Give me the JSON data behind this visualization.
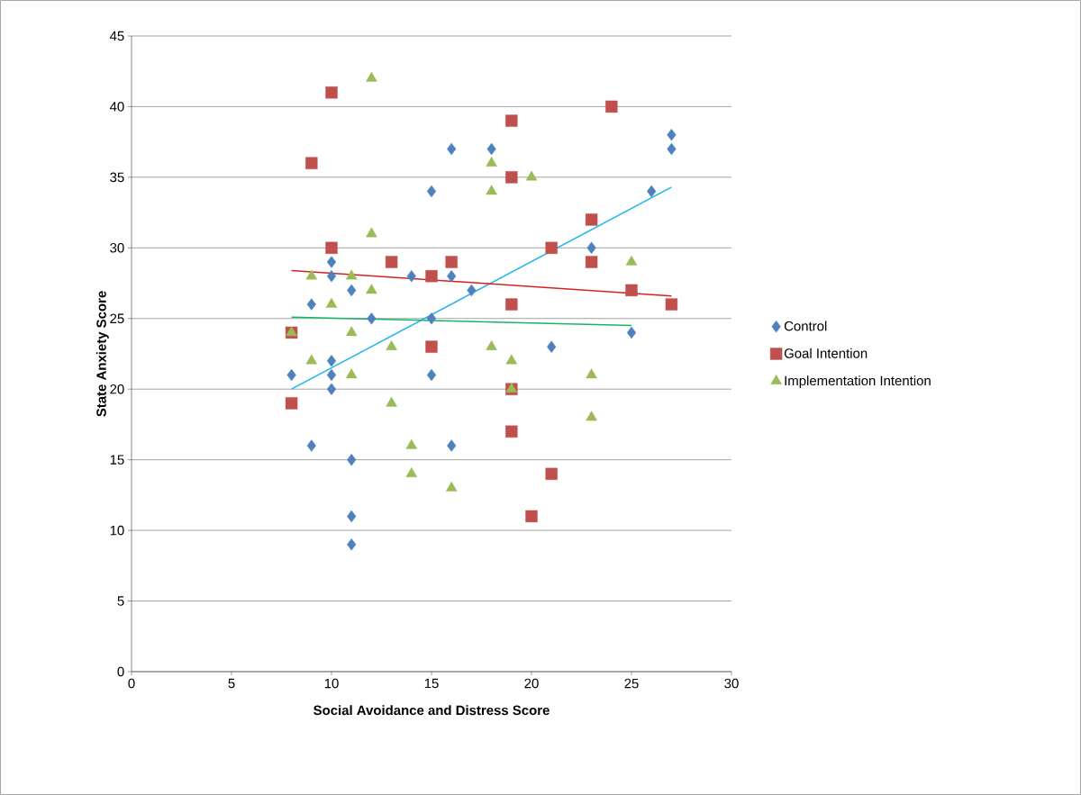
{
  "chart_data": {
    "type": "scatter",
    "xlabel": "Social Avoidance and Distress Score",
    "ylabel": "State Anxiety Score",
    "xlim": [
      0,
      30
    ],
    "xticks": [
      0,
      5,
      10,
      15,
      20,
      25,
      30
    ],
    "ylim": [
      0,
      45
    ],
    "yticks": [
      0,
      5,
      10,
      15,
      20,
      25,
      30,
      35,
      40,
      45
    ],
    "grid": "y",
    "legend": "right",
    "series": [
      {
        "name": "Control",
        "marker": "diamond",
        "color": "#4f81bd",
        "x": [
          8,
          9,
          9,
          10,
          10,
          10,
          10,
          10,
          11,
          11,
          11,
          11,
          12,
          14,
          15,
          15,
          15,
          16,
          16,
          16,
          17,
          18,
          21,
          23,
          25,
          26,
          27,
          27
        ],
        "values": [
          21,
          26,
          16,
          29,
          28,
          22,
          21,
          20,
          27,
          15,
          11,
          9,
          25,
          28,
          34,
          25,
          21,
          37,
          28,
          16,
          27,
          37,
          23,
          30,
          24,
          34,
          38,
          37
        ]
      },
      {
        "name": "Goal Intention",
        "marker": "square",
        "color": "#c0504d",
        "x": [
          8,
          8,
          9,
          10,
          10,
          13,
          15,
          15,
          16,
          19,
          19,
          19,
          19,
          19,
          20,
          21,
          21,
          23,
          23,
          24,
          25,
          27
        ],
        "values": [
          24,
          19,
          36,
          41,
          30,
          29,
          28,
          23,
          29,
          39,
          35,
          26,
          20,
          17,
          11,
          30,
          14,
          32,
          29,
          40,
          27,
          26
        ]
      },
      {
        "name": "Implementation Intention",
        "marker": "triangle",
        "color": "#9bbb59",
        "x": [
          8,
          9,
          9,
          10,
          11,
          11,
          11,
          12,
          12,
          12,
          13,
          13,
          14,
          14,
          16,
          18,
          18,
          18,
          19,
          19,
          20,
          23,
          23,
          25
        ],
        "values": [
          24,
          28,
          22,
          26,
          28,
          24,
          21,
          42,
          31,
          27,
          23,
          19,
          16,
          14,
          13,
          36,
          34,
          23,
          22,
          20,
          35,
          21,
          18,
          29
        ]
      },
      {
        "type": "line",
        "color": "#1fb4ee",
        "x": [
          8,
          27
        ],
        "values": [
          20,
          34.3
        ]
      },
      {
        "type": "line",
        "color": "#d92020",
        "x": [
          8,
          27
        ],
        "values": [
          28.4,
          26.6
        ]
      },
      {
        "type": "line",
        "color": "#19b36b",
        "x": [
          8,
          25
        ],
        "values": [
          25.1,
          24.5
        ]
      }
    ]
  }
}
